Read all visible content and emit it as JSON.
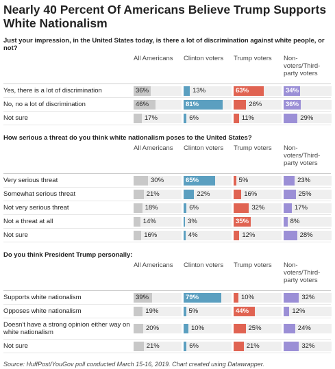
{
  "title": "Nearly 40 Percent Of Americans Believe Trump Supports White Nationalism",
  "colors": [
    "#c8c8c8",
    "#5b9fc0",
    "#e06352",
    "#9b8fd6"
  ],
  "track_color": "#efefef",
  "sections": [
    {
      "question": "Just your impression, in the United States today, is there a lot of discrimination against white people, or not?",
      "columns": [
        "All Americans",
        "Clinton voters",
        "Trump voters",
        "Non-voters/Third-party voters"
      ],
      "rows": [
        {
          "label": "Yes, there is a lot of discrimination",
          "values": [
            36,
            13,
            63,
            34
          ],
          "value_labels": [
            "36%",
            "13%",
            "63%",
            "34%"
          ]
        },
        {
          "label": "No, no a lot of discrimination",
          "values": [
            46,
            81,
            26,
            36
          ],
          "value_labels": [
            "46%",
            "81%",
            "26%",
            "36%"
          ]
        },
        {
          "label": "Not sure",
          "values": [
            17,
            6,
            11,
            29
          ],
          "value_labels": [
            "17%",
            "6%",
            "11%",
            "29%"
          ]
        }
      ]
    },
    {
      "question": "How serious a threat do you think white nationalism poses to the United States?",
      "columns": [
        "All Americans",
        "Clinton voters",
        "Trump voters",
        "Non-voters/Third-party voters"
      ],
      "rows": [
        {
          "label": "Very serious threat",
          "values": [
            30,
            65,
            5,
            23
          ],
          "value_labels": [
            "30%",
            "65%",
            "5%",
            "23%"
          ]
        },
        {
          "label": "Somewhat serious threat",
          "values": [
            21,
            22,
            16,
            25
          ],
          "value_labels": [
            "21%",
            "22%",
            "16%",
            "25%"
          ]
        },
        {
          "label": "Not very serious threat",
          "values": [
            18,
            6,
            32,
            17
          ],
          "value_labels": [
            "18%",
            "6%",
            "32%",
            "17%"
          ]
        },
        {
          "label": "Not a threat at all",
          "values": [
            14,
            3,
            35,
            8
          ],
          "value_labels": [
            "14%",
            "3%",
            "35%",
            "8%"
          ]
        },
        {
          "label": "Not sure",
          "values": [
            16,
            4,
            12,
            28
          ],
          "value_labels": [
            "16%",
            "4%",
            "12%",
            "28%"
          ]
        }
      ]
    },
    {
      "question": "Do you think President Trump personally:",
      "columns": [
        "All Americans",
        "Clinton voters",
        "Trump voters",
        "Non-voters/Third-party voters"
      ],
      "rows": [
        {
          "label": "Supports white nationalism",
          "values": [
            39,
            79,
            10,
            32
          ],
          "value_labels": [
            "39%",
            "79%",
            "10%",
            "32%"
          ]
        },
        {
          "label": "Opposes white nationalism",
          "values": [
            19,
            5,
            44,
            12
          ],
          "value_labels": [
            "19%",
            "5%",
            "44%",
            "12%"
          ]
        },
        {
          "label": "Doesn't have a strong opinion either way on white nationalism",
          "values": [
            20,
            10,
            25,
            24
          ],
          "value_labels": [
            "20%",
            "10%",
            "25%",
            "24%"
          ]
        },
        {
          "label": "Not sure",
          "values": [
            21,
            6,
            21,
            32
          ],
          "value_labels": [
            "21%",
            "6%",
            "21%",
            "32%"
          ]
        }
      ]
    }
  ],
  "source": "Source: HuffPost/YouGov poll conducted March 15-16, 2019. Chart created using Datawrapper."
}
